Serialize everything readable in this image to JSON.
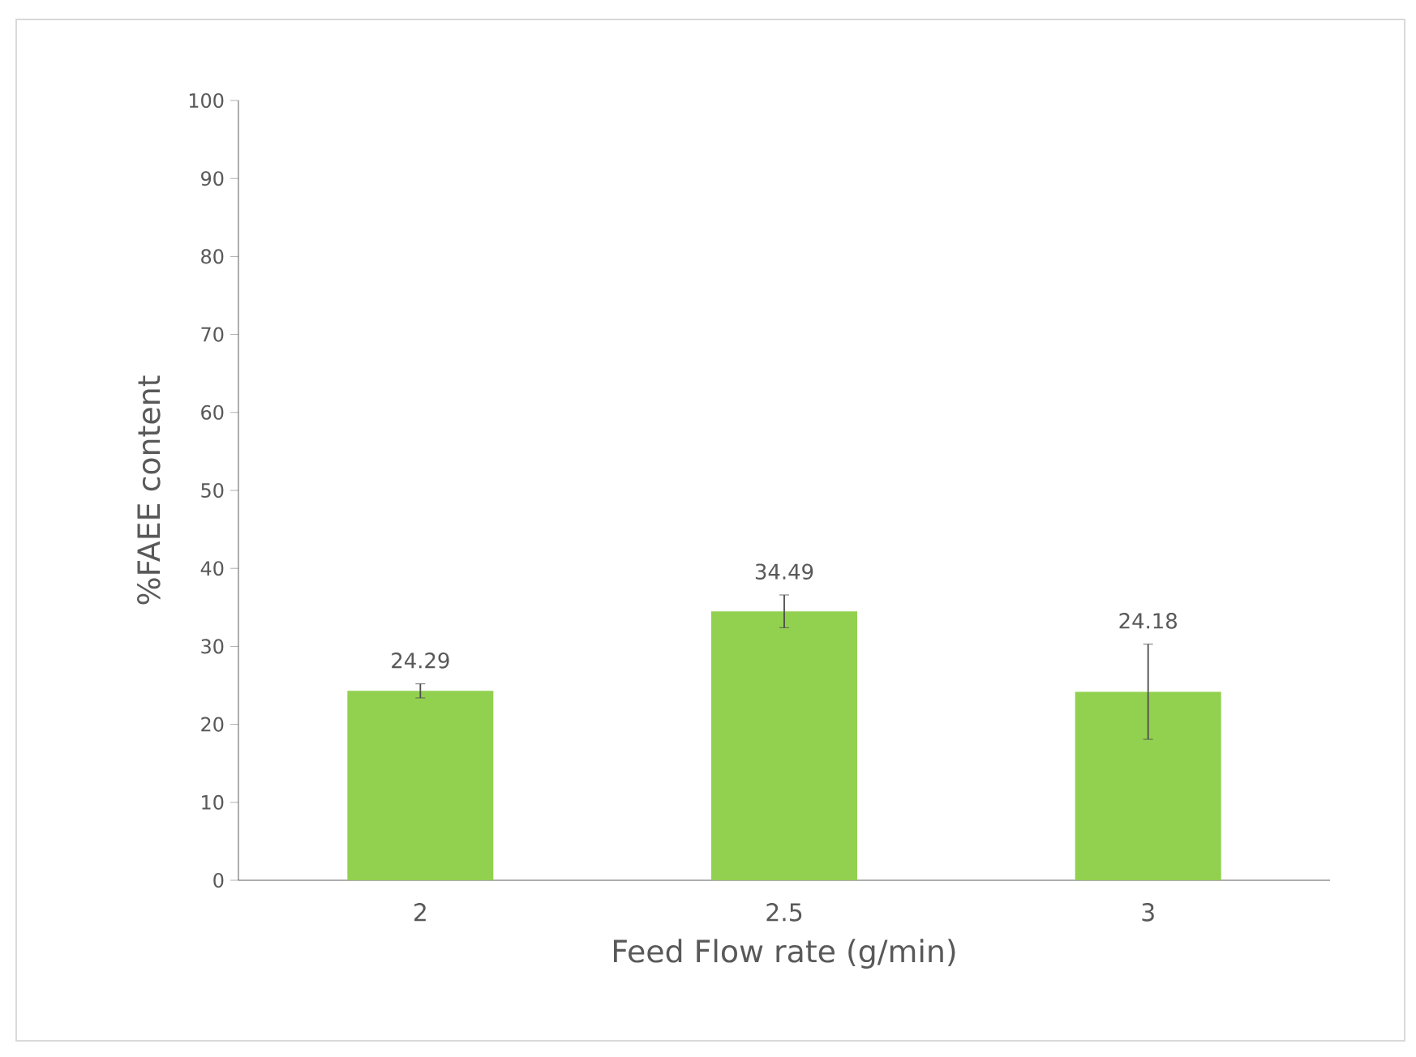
{
  "chart_data": {
    "type": "bar",
    "xlabel": "Feed Flow rate (g/min)",
    "ylabel": "%FAEE content",
    "categories": [
      "2",
      "2.5",
      "3"
    ],
    "values": [
      24.29,
      34.49,
      24.18
    ],
    "errors": [
      0.9,
      2.1,
      6.1
    ],
    "color": "#92d050",
    "ylim": [
      0,
      100
    ],
    "yticks": [
      0,
      10,
      20,
      30,
      40,
      50,
      60,
      70,
      80,
      90,
      100
    ],
    "data_labels": true
  }
}
